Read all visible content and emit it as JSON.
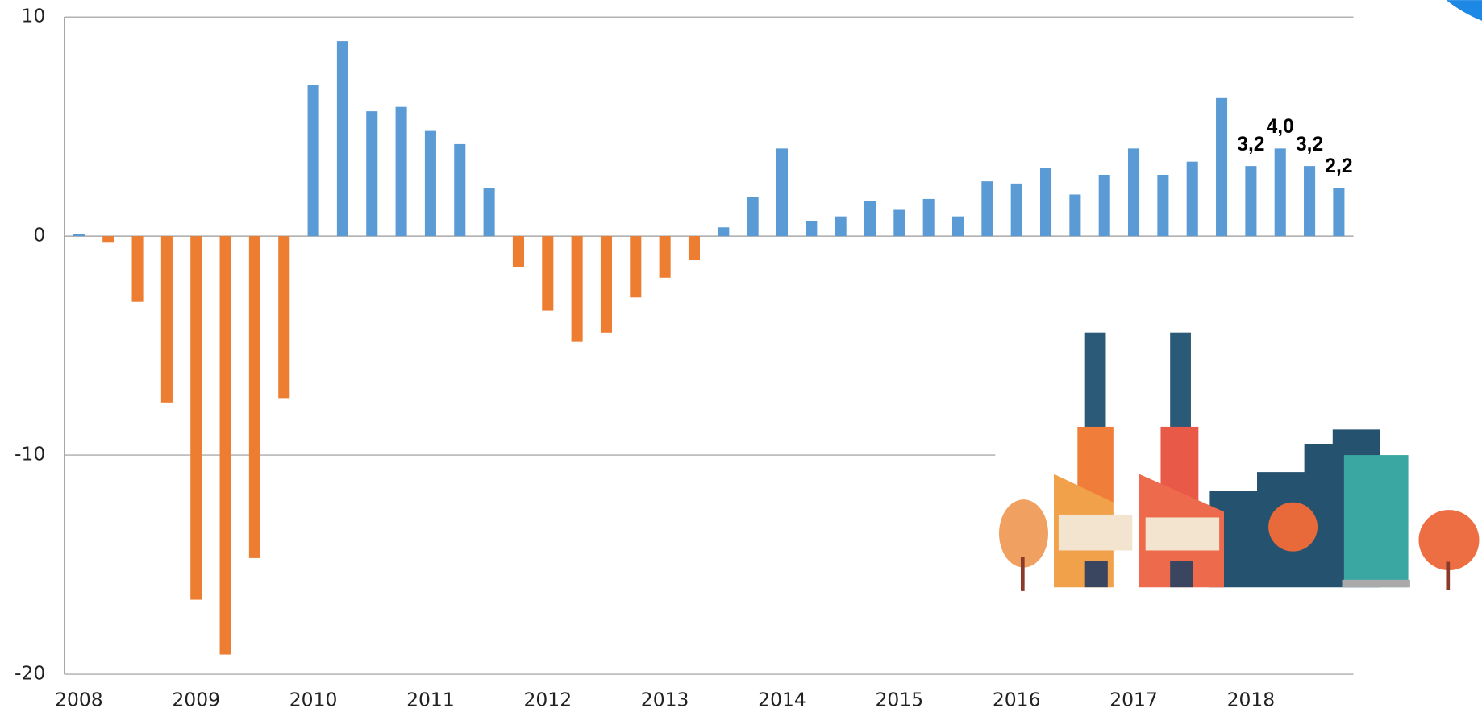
{
  "chart_data": {
    "type": "bar",
    "categories": [
      "2008",
      null,
      null,
      null,
      "2009",
      null,
      null,
      null,
      "2010",
      null,
      null,
      null,
      "2011",
      null,
      null,
      null,
      "2012",
      null,
      null,
      null,
      "2013",
      null,
      null,
      null,
      "2014",
      null,
      null,
      null,
      "2015",
      null,
      null,
      null,
      "2016",
      null,
      null,
      null,
      "2017",
      null,
      null,
      null,
      "2018",
      null,
      null,
      null
    ],
    "values": [
      0.1,
      -0.3,
      -3.0,
      -7.6,
      -16.6,
      -19.1,
      -14.7,
      -7.4,
      6.9,
      8.9,
      5.7,
      5.9,
      4.8,
      4.2,
      2.2,
      -1.4,
      -3.4,
      -4.8,
      -4.4,
      -2.8,
      -1.9,
      -1.1,
      0.4,
      1.8,
      4.0,
      0.7,
      0.9,
      1.6,
      1.2,
      1.7,
      0.9,
      2.5,
      2.4,
      3.1,
      1.9,
      2.8,
      4.0,
      2.8,
      3.4,
      6.3,
      3.2,
      4.0,
      3.2,
      2.2
    ],
    "value_labels": [
      null,
      null,
      null,
      null,
      null,
      null,
      null,
      null,
      null,
      null,
      null,
      null,
      null,
      null,
      null,
      null,
      null,
      null,
      null,
      null,
      null,
      null,
      null,
      null,
      null,
      null,
      null,
      null,
      null,
      null,
      null,
      null,
      null,
      null,
      null,
      null,
      null,
      null,
      null,
      null,
      "3,2",
      "4,0",
      "3,2",
      "2,2"
    ],
    "colors": {
      "positive": "#5b9bd5",
      "negative": "#ed7d31"
    },
    "ylim": [
      -20,
      10
    ],
    "yticks": [
      -20,
      -10,
      0,
      10
    ],
    "grid": true
  }
}
